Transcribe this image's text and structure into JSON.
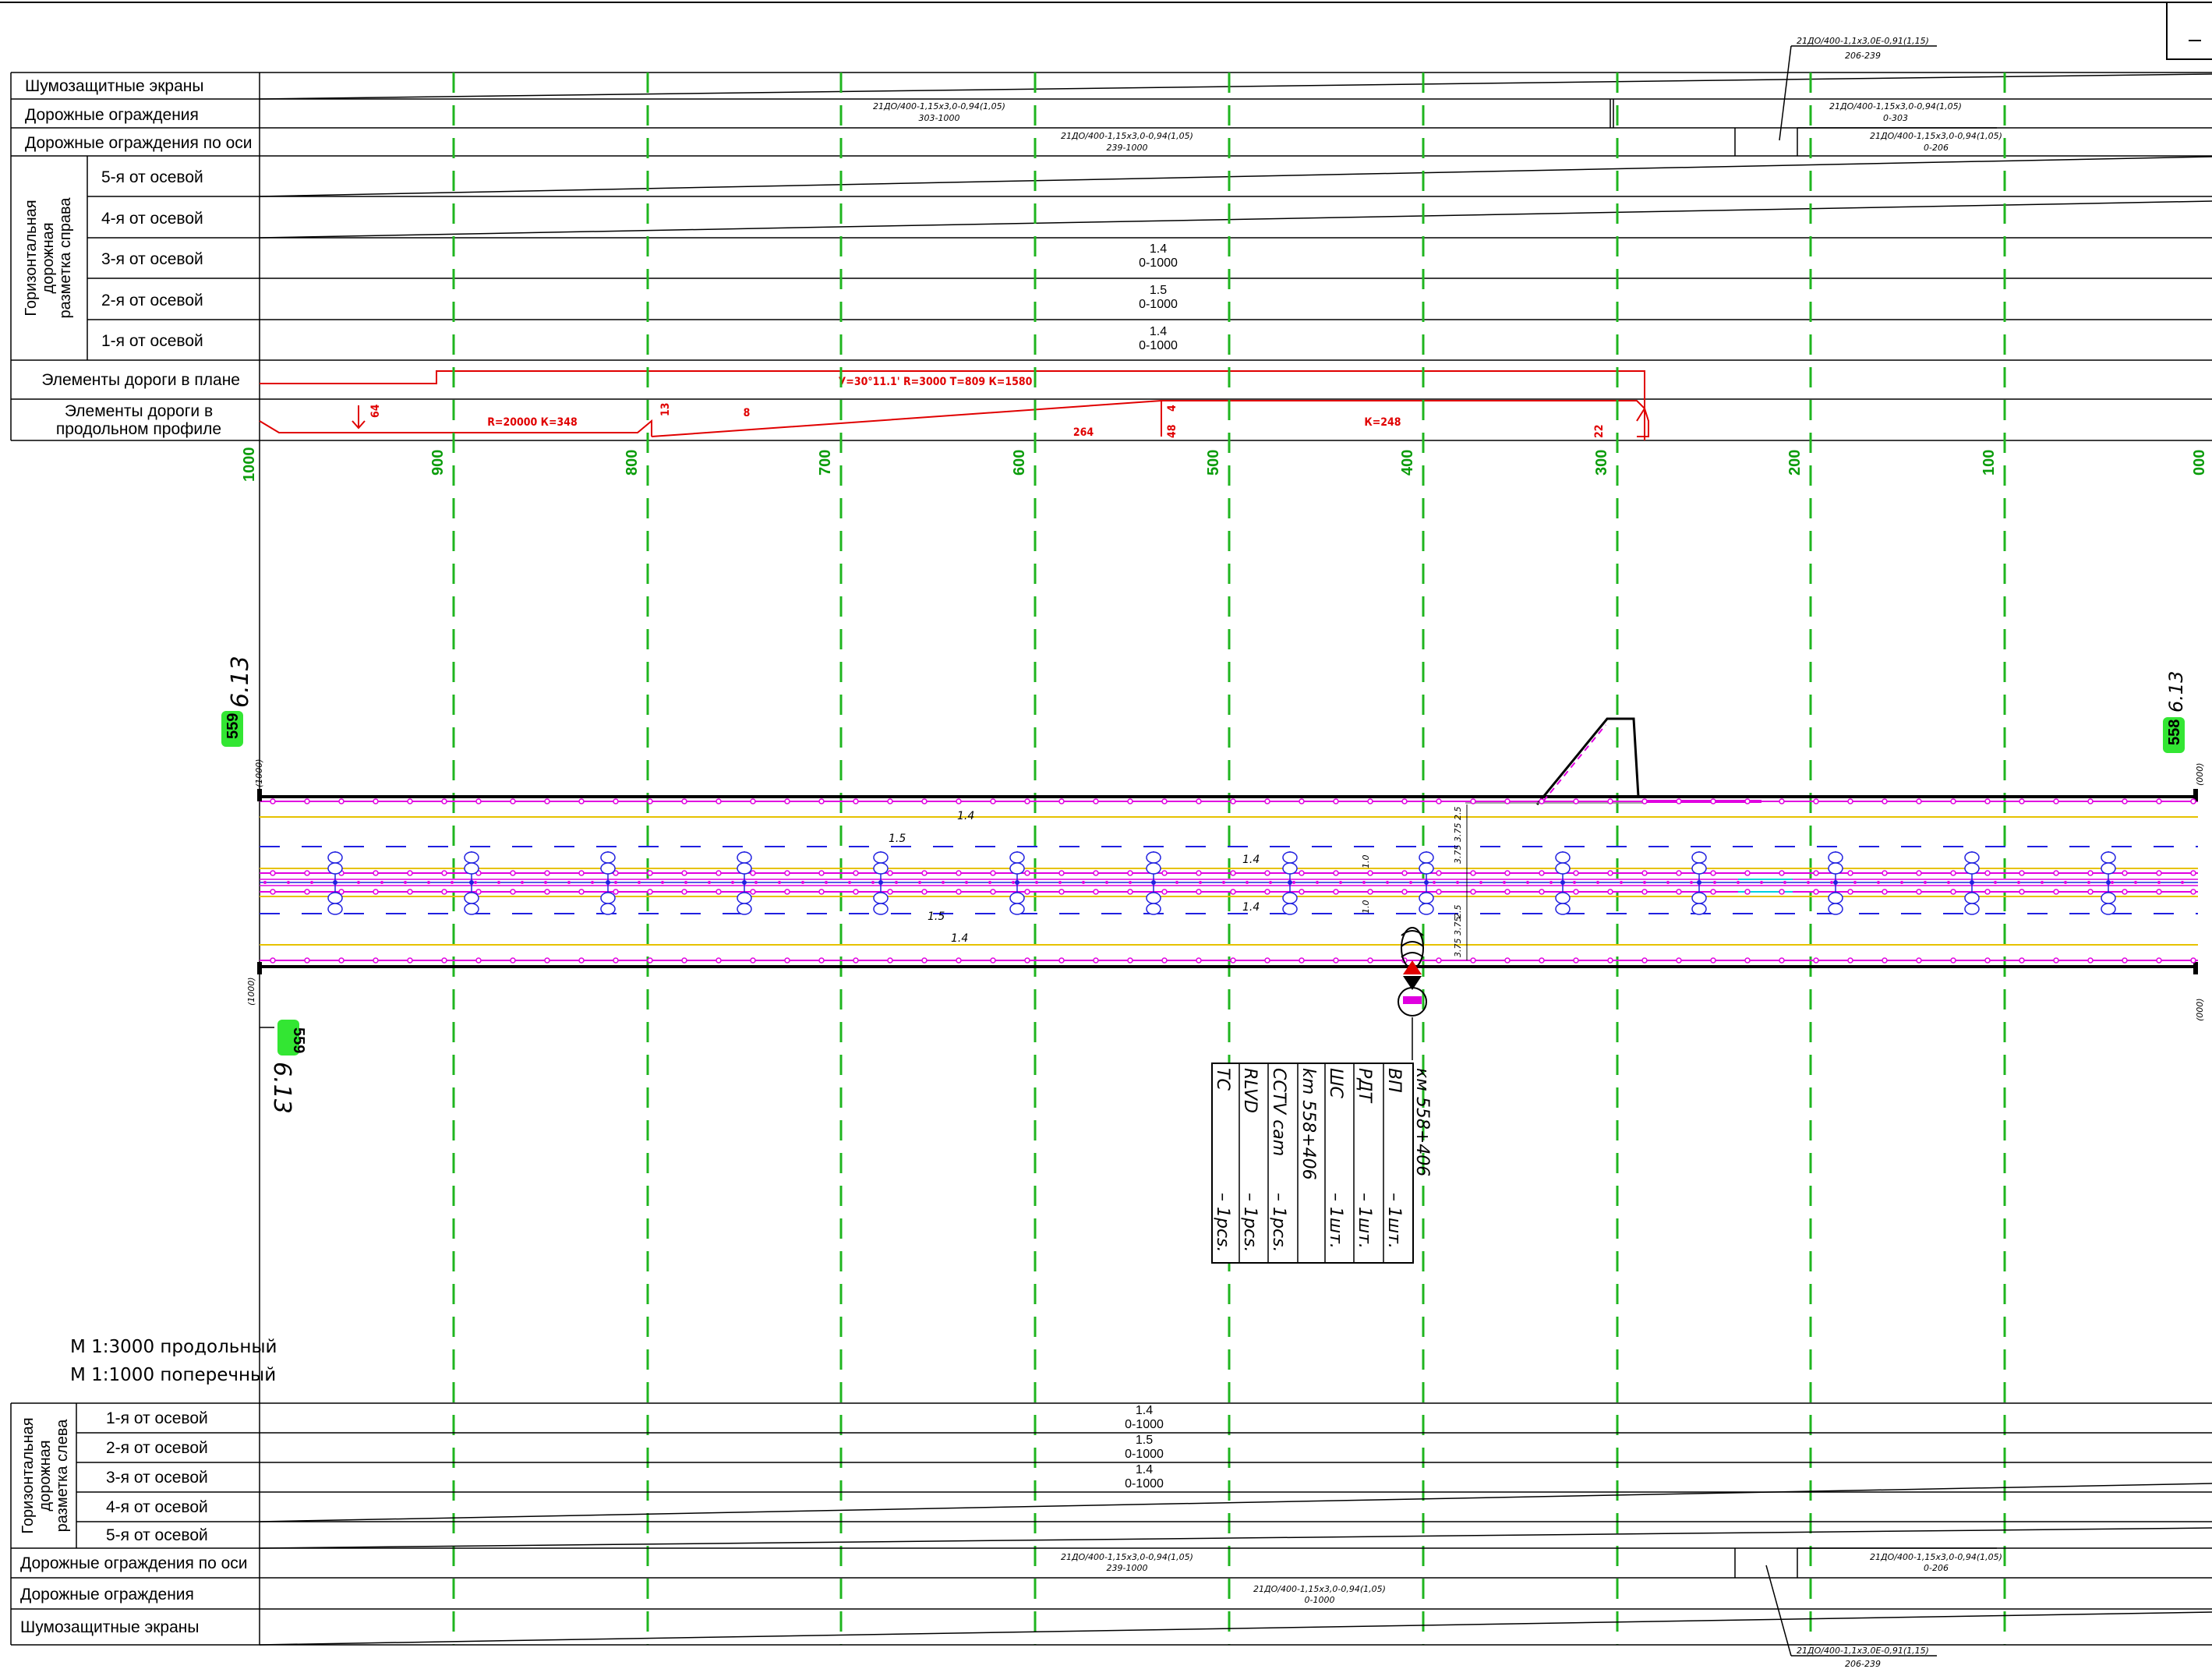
{
  "top_table": {
    "rows": [
      {
        "label": "Шумозащитные экраны"
      },
      {
        "label": "Дорожные ограждения"
      },
      {
        "label": "Дорожные ограждения по оси"
      },
      {
        "label": "5-я от осевой"
      },
      {
        "label": "4-я от осевой"
      },
      {
        "label": "3-я от осевой"
      },
      {
        "label": "2-я от осевой"
      },
      {
        "label": "1-я от осевой"
      }
    ],
    "group_label_lines": [
      "Горизонтальная",
      "дорожная",
      "разметка справа"
    ],
    "plan_label": "Элементы дороги в плане",
    "profile_label_lines": [
      "Элементы дороги в",
      "продольном профиле"
    ],
    "annotations": {
      "screens_top_1": "21ДО/400-1,1х3,0Е-0,91(1,15)",
      "screens_top_2": "206-239",
      "barrier_left_1": "21ДО/400-1,15х3,0-0,94(1,05)",
      "barrier_left_2": "303-1000",
      "barrier_right_1": "21ДО/400-1,15х3,0-0,94(1,05)",
      "barrier_right_2": "0-303",
      "axis_left_1": "21ДО/400-1,15х3,0-0,94(1,05)",
      "axis_left_2": "239-1000",
      "axis_right_1": "21ДО/400-1,15х3,0-0,94(1,05)",
      "axis_right_2": "0-206",
      "m3_1": "1.4",
      "m3_2": "0-1000",
      "m2_1": "1.5",
      "m2_2": "0-1000",
      "m1_1": "1.4",
      "m1_2": "0-1000"
    },
    "plan_curve": "У=30°11.1' R=3000  Т=809 К=1580",
    "profile": {
      "n64": "64",
      "curve1": "R=20000 К=348",
      "n13": "13",
      "n8": "8",
      "n264": "264",
      "n4": "4",
      "n48": "48",
      "curve2": "К=248",
      "n22": "22"
    }
  },
  "stations": [
    "1000",
    "900",
    "800",
    "700",
    "600",
    "500",
    "400",
    "300",
    "200",
    "100",
    "000"
  ],
  "road": {
    "marker_left_top": "559",
    "marker_right_top": "558",
    "marker_left_bottom": "559",
    "sign_text": "6.13",
    "edge_text": "(1000)",
    "edge_text_right": "(000)",
    "lane_top": "1.4",
    "lane_upper": "1.5",
    "lane_center_a": "1.4",
    "lane_center_b": "1.4",
    "lane_lower": "1.5",
    "lane_bottom": "1.4",
    "dim_up_1": "3.75",
    "dim_up_2": "3.75",
    "dim_up_3": "2.5",
    "dim_dn_1": "2.5",
    "dim_dn_2": "3.75",
    "dim_dn_3": "3.75",
    "dim_mid_1": "1.0",
    "dim_mid_2": "1.0"
  },
  "equipment": {
    "title": "км 558+406",
    "lines": [
      {
        "name": "ВП",
        "qty": "–  1шт."
      },
      {
        "name": "РДТ",
        "qty": "–  1шт."
      },
      {
        "name": "ШС",
        "qty": "–  1шт."
      },
      {
        "name": "km 558+406",
        "qty": ""
      },
      {
        "name": "CCTV cam",
        "qty": "–  1pcs."
      },
      {
        "name": "RLVD",
        "qty": "–  1pcs."
      },
      {
        "name": "TC",
        "qty": "–  1pcs."
      }
    ]
  },
  "scale": {
    "line1": "М 1:3000 продольный",
    "line2": "М 1:1000 поперечный"
  },
  "bottom_table": {
    "rows": [
      {
        "label": "1-я от осевой"
      },
      {
        "label": "2-я от осевой"
      },
      {
        "label": "3-я от осевой"
      },
      {
        "label": "4-я от осевой"
      },
      {
        "label": "5-я от осевой"
      },
      {
        "label": "Дорожные ограждения по оси"
      },
      {
        "label": "Дорожные ограждения"
      },
      {
        "label": "Шумозащитные экраны"
      }
    ],
    "group_label_lines": [
      "Горизонтальная",
      "дорожная",
      "разметка слева"
    ],
    "annotations": {
      "m1_1": "1.4",
      "m1_2": "0-1000",
      "m2_1": "1.5",
      "m2_2": "0-1000",
      "m3_1": "1.4",
      "m3_2": "0-1000",
      "axis_left_1": "21ДО/400-1,15х3,0-0,94(1,05)",
      "axis_left_2": "239-1000",
      "axis_right_1": "21ДО/400-1,15х3,0-0,94(1,05)",
      "axis_right_2": "0-206",
      "barrier_1": "21ДО/400-1,15х3,0-0,94(1,05)",
      "barrier_2": "0-1000",
      "screens_1": "21ДО/400-1,1х3,0Е-0,91(1,15)",
      "screens_2": "206-239"
    }
  },
  "colors": {
    "grid": "#1fb51f",
    "profile": "#e00000",
    "marking_yellow": "#e6c200",
    "magenta": "#e000e0",
    "blue": "#2020e0",
    "marker_bg": "#33e633"
  }
}
